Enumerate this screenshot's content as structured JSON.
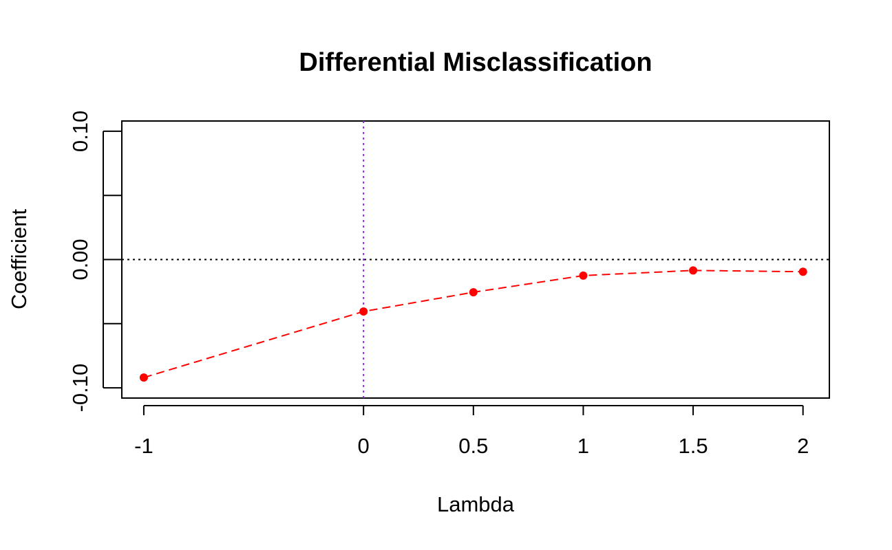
{
  "chart_data": {
    "type": "line",
    "title": "Differential Misclassification",
    "xlabel": "Lambda",
    "ylabel": "Coefficient",
    "xlim": [
      -1.1,
      2.12
    ],
    "ylim": [
      -0.108,
      0.108
    ],
    "x_ticks": [
      {
        "value": -1,
        "label": "-1"
      },
      {
        "value": 0,
        "label": "0"
      },
      {
        "value": 0.5,
        "label": "0.5"
      },
      {
        "value": 1,
        "label": "1"
      },
      {
        "value": 1.5,
        "label": "1.5"
      },
      {
        "value": 2,
        "label": "2"
      }
    ],
    "y_ticks": [
      {
        "value": -0.1,
        "label": "-0.10"
      },
      {
        "value": -0.05,
        "label": ""
      },
      {
        "value": 0.0,
        "label": "0.00"
      },
      {
        "value": 0.05,
        "label": ""
      },
      {
        "value": 0.1,
        "label": "0.10"
      }
    ],
    "grid": false,
    "reference_lines": [
      {
        "orientation": "horizontal",
        "value": 0,
        "color": "#000000",
        "style": "dotted"
      },
      {
        "orientation": "vertical",
        "value": 0,
        "color": "#8a2be2",
        "style": "dotted"
      }
    ],
    "series": [
      {
        "color": "#ff0000",
        "line_style": "dashed",
        "marker": "filled-circle",
        "points": [
          {
            "x": -1,
            "y": -0.092
          },
          {
            "x": 0,
            "y": -0.0405
          },
          {
            "x": 0.5,
            "y": -0.0255
          },
          {
            "x": 1,
            "y": -0.0125
          },
          {
            "x": 1.5,
            "y": -0.0085
          },
          {
            "x": 2,
            "y": -0.0095
          }
        ]
      }
    ]
  }
}
